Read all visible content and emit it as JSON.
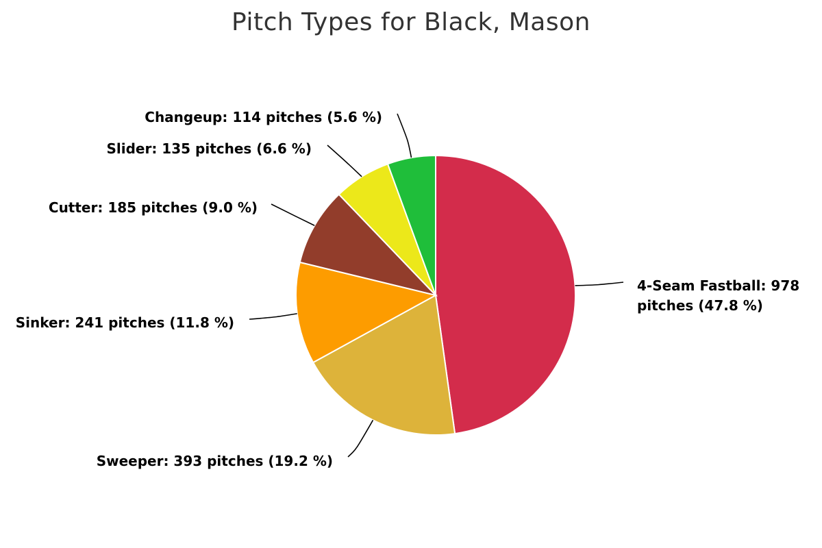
{
  "chart_data": {
    "type": "pie",
    "title": "Pitch Types for Black, Mason",
    "unit_label": "pitches",
    "slices": [
      {
        "name": "4-Seam Fastball",
        "count": 978,
        "percent": 47.8,
        "color": "#d32c4b",
        "label_lines": [
          "4-Seam Fastball: 978",
          "pitches (47.8 %)"
        ]
      },
      {
        "name": "Sweeper",
        "count": 393,
        "percent": 19.2,
        "color": "#ddb33a",
        "label_lines": [
          "Sweeper: 393 pitches (19.2 %)"
        ]
      },
      {
        "name": "Sinker",
        "count": 241,
        "percent": 11.8,
        "color": "#fd9c00",
        "label_lines": [
          "Sinker: 241 pitches (11.8 %)"
        ]
      },
      {
        "name": "Cutter",
        "count": 185,
        "percent": 9.0,
        "color": "#923d2b",
        "label_lines": [
          "Cutter: 185 pitches (9.0 %)"
        ]
      },
      {
        "name": "Slider",
        "count": 135,
        "percent": 6.6,
        "color": "#ece81a",
        "label_lines": [
          "Slider: 135 pitches (6.6 %)"
        ]
      },
      {
        "name": "Changeup",
        "count": 114,
        "percent": 5.6,
        "color": "#1fbe3a",
        "label_lines": [
          "Changeup: 114 pitches (5.6 %)"
        ]
      }
    ]
  }
}
